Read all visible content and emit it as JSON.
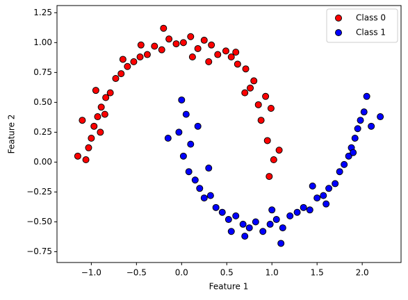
{
  "chart_data": {
    "type": "scatter",
    "x_label": "Feature 1",
    "y_label": "Feature 2",
    "xlim": [
      -1.38,
      2.43
    ],
    "ylim": [
      -0.84,
      1.31
    ],
    "xticks": [
      {
        "value": -1.0,
        "label": "−1.0"
      },
      {
        "value": -0.5,
        "label": "−0.5"
      },
      {
        "value": 0.0,
        "label": "0.0"
      },
      {
        "value": 0.5,
        "label": "0.5"
      },
      {
        "value": 1.0,
        "label": "1.0"
      },
      {
        "value": 1.5,
        "label": "1.5"
      },
      {
        "value": 2.0,
        "label": "2.0"
      }
    ],
    "yticks": [
      {
        "value": -0.75,
        "label": "−0.75"
      },
      {
        "value": -0.5,
        "label": "−0.50"
      },
      {
        "value": -0.25,
        "label": "−0.25"
      },
      {
        "value": 0.0,
        "label": "0.00"
      },
      {
        "value": 0.25,
        "label": "0.25"
      },
      {
        "value": 0.5,
        "label": "0.50"
      },
      {
        "value": 0.75,
        "label": "0.75"
      },
      {
        "value": 1.0,
        "label": "1.00"
      },
      {
        "value": 1.25,
        "label": "1.25"
      }
    ],
    "legend": "upper right",
    "edge_color": "#000000",
    "series": [
      {
        "name": "Class 0",
        "color": "#ff0000",
        "x": [
          1.02,
          0.95,
          1.08,
          0.88,
          0.99,
          0.93,
          0.85,
          0.8,
          0.76,
          0.71,
          0.62,
          0.55,
          0.49,
          0.4,
          0.33,
          0.25,
          0.18,
          0.1,
          0.02,
          -0.06,
          -0.14,
          -0.22,
          -0.3,
          -0.38,
          -0.46,
          -0.53,
          -0.6,
          -0.67,
          -0.73,
          -0.79,
          -0.84,
          -0.89,
          -0.93,
          -0.97,
          -1.0,
          -1.03,
          -1.06,
          -0.95,
          -1.1,
          -0.9,
          0.97,
          0.7,
          0.3,
          -0.2,
          -0.65,
          0.12,
          0.6,
          -0.45,
          -1.15,
          -0.85
        ],
        "values": [
          0.02,
          0.18,
          0.1,
          0.35,
          0.45,
          0.55,
          0.48,
          0.68,
          0.62,
          0.78,
          0.82,
          0.88,
          0.93,
          0.9,
          0.98,
          1.02,
          0.95,
          1.05,
          1.0,
          0.99,
          1.03,
          0.94,
          0.97,
          0.9,
          0.88,
          0.84,
          0.8,
          0.74,
          0.7,
          0.58,
          0.54,
          0.46,
          0.38,
          0.3,
          0.2,
          0.12,
          0.02,
          0.6,
          0.35,
          0.25,
          -0.12,
          0.58,
          0.84,
          1.12,
          0.86,
          0.88,
          0.92,
          0.98,
          0.05,
          0.4
        ]
      },
      {
        "name": "Class 1",
        "color": "#0000ff",
        "x": [
          0.0,
          0.05,
          -0.03,
          0.1,
          0.02,
          0.08,
          0.15,
          0.2,
          0.25,
          0.32,
          0.38,
          0.45,
          0.52,
          0.6,
          0.68,
          0.75,
          0.82,
          0.9,
          0.98,
          1.05,
          1.12,
          1.2,
          1.28,
          1.35,
          1.42,
          1.5,
          1.57,
          1.63,
          1.7,
          1.75,
          1.8,
          1.85,
          1.88,
          1.92,
          1.95,
          1.98,
          2.02,
          2.05,
          1.9,
          2.1,
          0.3,
          0.7,
          1.1,
          1.6,
          -0.15,
          0.55,
          1.0,
          1.45,
          2.2,
          0.18
        ],
        "values": [
          0.52,
          0.4,
          0.25,
          0.15,
          0.05,
          -0.08,
          -0.15,
          -0.22,
          -0.3,
          -0.28,
          -0.38,
          -0.42,
          -0.48,
          -0.45,
          -0.52,
          -0.55,
          -0.5,
          -0.58,
          -0.52,
          -0.48,
          -0.55,
          -0.45,
          -0.42,
          -0.38,
          -0.4,
          -0.3,
          -0.28,
          -0.22,
          -0.18,
          -0.08,
          -0.02,
          0.05,
          0.12,
          0.2,
          0.28,
          0.35,
          0.42,
          0.55,
          0.08,
          0.3,
          -0.05,
          -0.62,
          -0.68,
          -0.35,
          0.2,
          -0.58,
          -0.4,
          -0.2,
          0.38,
          0.3
        ]
      }
    ]
  }
}
